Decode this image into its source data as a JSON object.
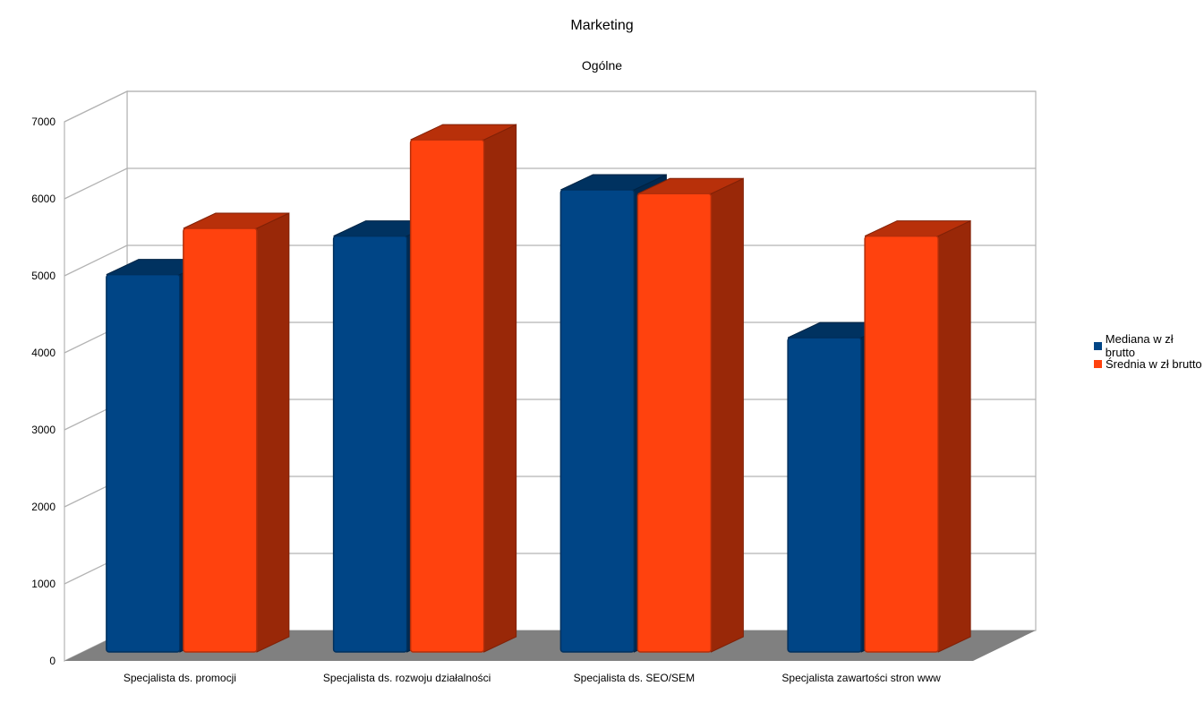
{
  "chart_data": {
    "type": "bar",
    "title": "Marketing",
    "subtitle": "Ogólne",
    "xlabel": "",
    "ylabel": "",
    "categories": [
      "Specjalista ds. promocji",
      "Specjalista ds. rozwoju działalności",
      "Specjalista ds. SEO/SEM",
      "Specjalista zawartości stron www"
    ],
    "series": [
      {
        "name": "Mediana w zł brutto",
        "values": [
          4900,
          5400,
          6000,
          4080
        ],
        "color": "#004586"
      },
      {
        "name": "Średnia w zł brutto",
        "values": [
          5500,
          6650,
          5950,
          5400
        ],
        "color": "#ff420e"
      }
    ],
    "ylim": [
      0,
      7000
    ],
    "yticks": [
      "0",
      "1000",
      "2000",
      "3000",
      "4000",
      "5000",
      "6000",
      "7000"
    ],
    "grid": true,
    "legend_position": "right",
    "style": "3d"
  }
}
